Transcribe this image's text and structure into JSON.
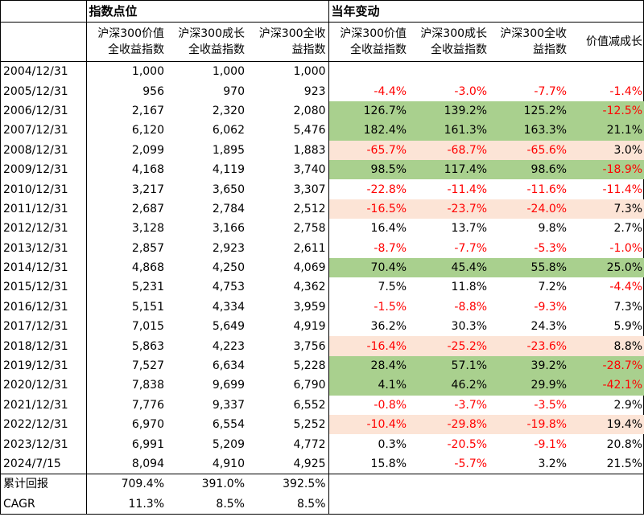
{
  "headers": {
    "group_index": "指数点位",
    "group_change": "当年变动",
    "col1": "沪深300价值全收益指数",
    "col2": "沪深300成长全收益指数",
    "col3": "沪深300全收益指数",
    "col4": "沪深300价值全收益指数",
    "col5": "沪深300成长全收益指数",
    "col6": "沪深300全收益指数",
    "col7": "价值减成长"
  },
  "colors": {
    "positive_fill": "#a9d08e",
    "negative_fill": "#fce4d6",
    "negative_text": "#ff0000"
  },
  "rows": [
    {
      "date": "2004/12/31",
      "v": "1,000",
      "g": "1,000",
      "a": "1,000",
      "cv": "",
      "cg": "",
      "ca": "",
      "d": "",
      "hl": ""
    },
    {
      "date": "2005/12/31",
      "v": "956",
      "g": "970",
      "a": "923",
      "cv": "-4.4%",
      "cg": "-3.0%",
      "ca": "-7.7%",
      "d": "-1.4%",
      "hl": ""
    },
    {
      "date": "2006/12/31",
      "v": "2,167",
      "g": "2,320",
      "a": "2,080",
      "cv": "126.7%",
      "cg": "139.2%",
      "ca": "125.2%",
      "d": "-12.5%",
      "hl": "g"
    },
    {
      "date": "2007/12/31",
      "v": "6,120",
      "g": "6,062",
      "a": "5,476",
      "cv": "182.4%",
      "cg": "161.3%",
      "ca": "163.3%",
      "d": "21.1%",
      "hl": "g"
    },
    {
      "date": "2008/12/31",
      "v": "2,099",
      "g": "1,895",
      "a": "1,883",
      "cv": "-65.7%",
      "cg": "-68.7%",
      "ca": "-65.6%",
      "d": "3.0%",
      "hl": "p"
    },
    {
      "date": "2009/12/31",
      "v": "4,168",
      "g": "4,119",
      "a": "3,740",
      "cv": "98.5%",
      "cg": "117.4%",
      "ca": "98.6%",
      "d": "-18.9%",
      "hl": "g"
    },
    {
      "date": "2010/12/31",
      "v": "3,217",
      "g": "3,650",
      "a": "3,307",
      "cv": "-22.8%",
      "cg": "-11.4%",
      "ca": "-11.6%",
      "d": "-11.4%",
      "hl": ""
    },
    {
      "date": "2011/12/31",
      "v": "2,687",
      "g": "2,784",
      "a": "2,512",
      "cv": "-16.5%",
      "cg": "-23.7%",
      "ca": "-24.0%",
      "d": "7.3%",
      "hl": "p"
    },
    {
      "date": "2012/12/31",
      "v": "3,128",
      "g": "3,166",
      "a": "2,758",
      "cv": "16.4%",
      "cg": "13.7%",
      "ca": "9.8%",
      "d": "2.7%",
      "hl": ""
    },
    {
      "date": "2013/12/31",
      "v": "2,857",
      "g": "2,923",
      "a": "2,611",
      "cv": "-8.7%",
      "cg": "-7.7%",
      "ca": "-5.3%",
      "d": "-1.0%",
      "hl": ""
    },
    {
      "date": "2014/12/31",
      "v": "4,868",
      "g": "4,250",
      "a": "4,069",
      "cv": "70.4%",
      "cg": "45.4%",
      "ca": "55.8%",
      "d": "25.0%",
      "hl": "g"
    },
    {
      "date": "2015/12/31",
      "v": "5,231",
      "g": "4,753",
      "a": "4,362",
      "cv": "7.5%",
      "cg": "11.8%",
      "ca": "7.2%",
      "d": "-4.4%",
      "hl": ""
    },
    {
      "date": "2016/12/31",
      "v": "5,151",
      "g": "4,334",
      "a": "3,959",
      "cv": "-1.5%",
      "cg": "-8.8%",
      "ca": "-9.3%",
      "d": "7.3%",
      "hl": ""
    },
    {
      "date": "2017/12/31",
      "v": "7,015",
      "g": "5,649",
      "a": "4,919",
      "cv": "36.2%",
      "cg": "30.3%",
      "ca": "24.3%",
      "d": "5.9%",
      "hl": ""
    },
    {
      "date": "2018/12/31",
      "v": "5,863",
      "g": "4,223",
      "a": "3,756",
      "cv": "-16.4%",
      "cg": "-25.2%",
      "ca": "-23.6%",
      "d": "8.8%",
      "hl": "p"
    },
    {
      "date": "2019/12/31",
      "v": "7,527",
      "g": "6,634",
      "a": "5,228",
      "cv": "28.4%",
      "cg": "57.1%",
      "ca": "39.2%",
      "d": "-28.7%",
      "hl": "g"
    },
    {
      "date": "2020/12/31",
      "v": "7,838",
      "g": "9,699",
      "a": "6,790",
      "cv": "4.1%",
      "cg": "46.2%",
      "ca": "29.9%",
      "d": "-42.1%",
      "hl": "g"
    },
    {
      "date": "2021/12/31",
      "v": "7,776",
      "g": "9,337",
      "a": "6,552",
      "cv": "-0.8%",
      "cg": "-3.7%",
      "ca": "-3.5%",
      "d": "2.9%",
      "hl": ""
    },
    {
      "date": "2022/12/31",
      "v": "6,970",
      "g": "6,554",
      "a": "5,252",
      "cv": "-10.4%",
      "cg": "-29.8%",
      "ca": "-19.8%",
      "d": "19.4%",
      "hl": "p"
    },
    {
      "date": "2023/12/31",
      "v": "6,991",
      "g": "5,209",
      "a": "4,772",
      "cv": "0.3%",
      "cg": "-20.5%",
      "ca": "-9.1%",
      "d": "20.8%",
      "hl": ""
    },
    {
      "date": "2024/7/15",
      "v": "8,094",
      "g": "4,910",
      "a": "4,925",
      "cv": "15.8%",
      "cg": "-5.7%",
      "ca": "3.2%",
      "d": "21.5%",
      "hl": ""
    }
  ],
  "summary": [
    {
      "label": "累计回报",
      "v": "709.4%",
      "g": "391.0%",
      "a": "392.5%"
    },
    {
      "label": "CAGR",
      "v": "11.3%",
      "g": "8.5%",
      "a": "8.5%"
    }
  ]
}
